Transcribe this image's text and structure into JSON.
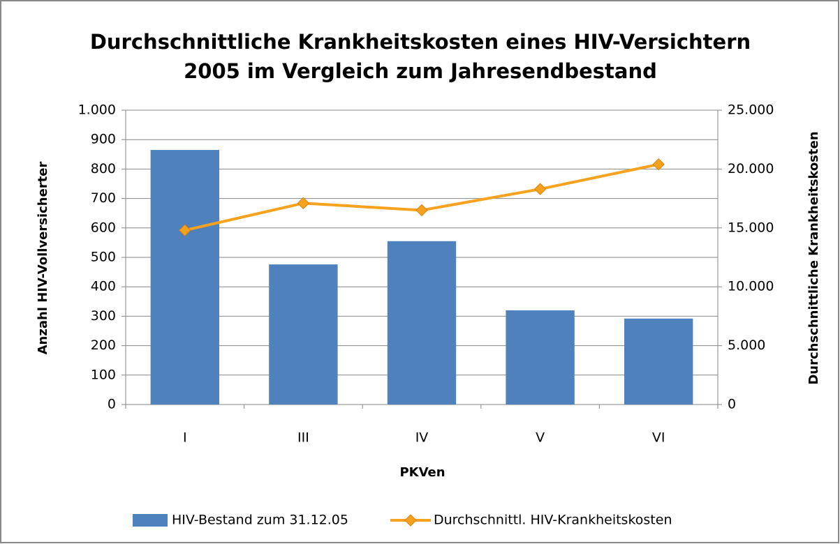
{
  "chart_data": {
    "type": "bar_line",
    "title": [
      "Durchschnittliche Krankheitskosten eines HIV-Versichtern",
      "2005 im Vergleich zum Jahresendbestand"
    ],
    "x_label": "PKVen",
    "y_label": "Anzahl HIV-Vollversicherter",
    "y2_label": "Durchschnittliche Krankheitskosten",
    "categories": [
      "I",
      "III",
      "IV",
      "V",
      "VI"
    ],
    "series": [
      {
        "name": "HIV-Bestand zum 31.12.05",
        "type": "bar",
        "color": "#4f81bd",
        "values": [
          865,
          476,
          555,
          320,
          292
        ]
      },
      {
        "name": "Durchschnittl. HIV-Krankheitskosten",
        "type": "line",
        "color": "#f7a21e",
        "axis": "y2",
        "values": [
          14800,
          17100,
          16500,
          18300,
          20400
        ]
      }
    ],
    "ylim": [
      0,
      1000
    ],
    "yticks": [
      0,
      100,
      200,
      300,
      400,
      500,
      600,
      700,
      800,
      900,
      {
        "value": 1000,
        "label": "1.000"
      }
    ],
    "y2lim": [
      0,
      25000
    ],
    "y2ticks": [
      0,
      {
        "value": 5000,
        "label": "5.000"
      },
      {
        "value": 10000,
        "label": "10.000"
      },
      {
        "value": 15000,
        "label": "15.000"
      },
      {
        "value": 20000,
        "label": "20.000"
      },
      {
        "value": 25000,
        "label": "25.000"
      }
    ],
    "grid": true,
    "legend": "bottom"
  }
}
